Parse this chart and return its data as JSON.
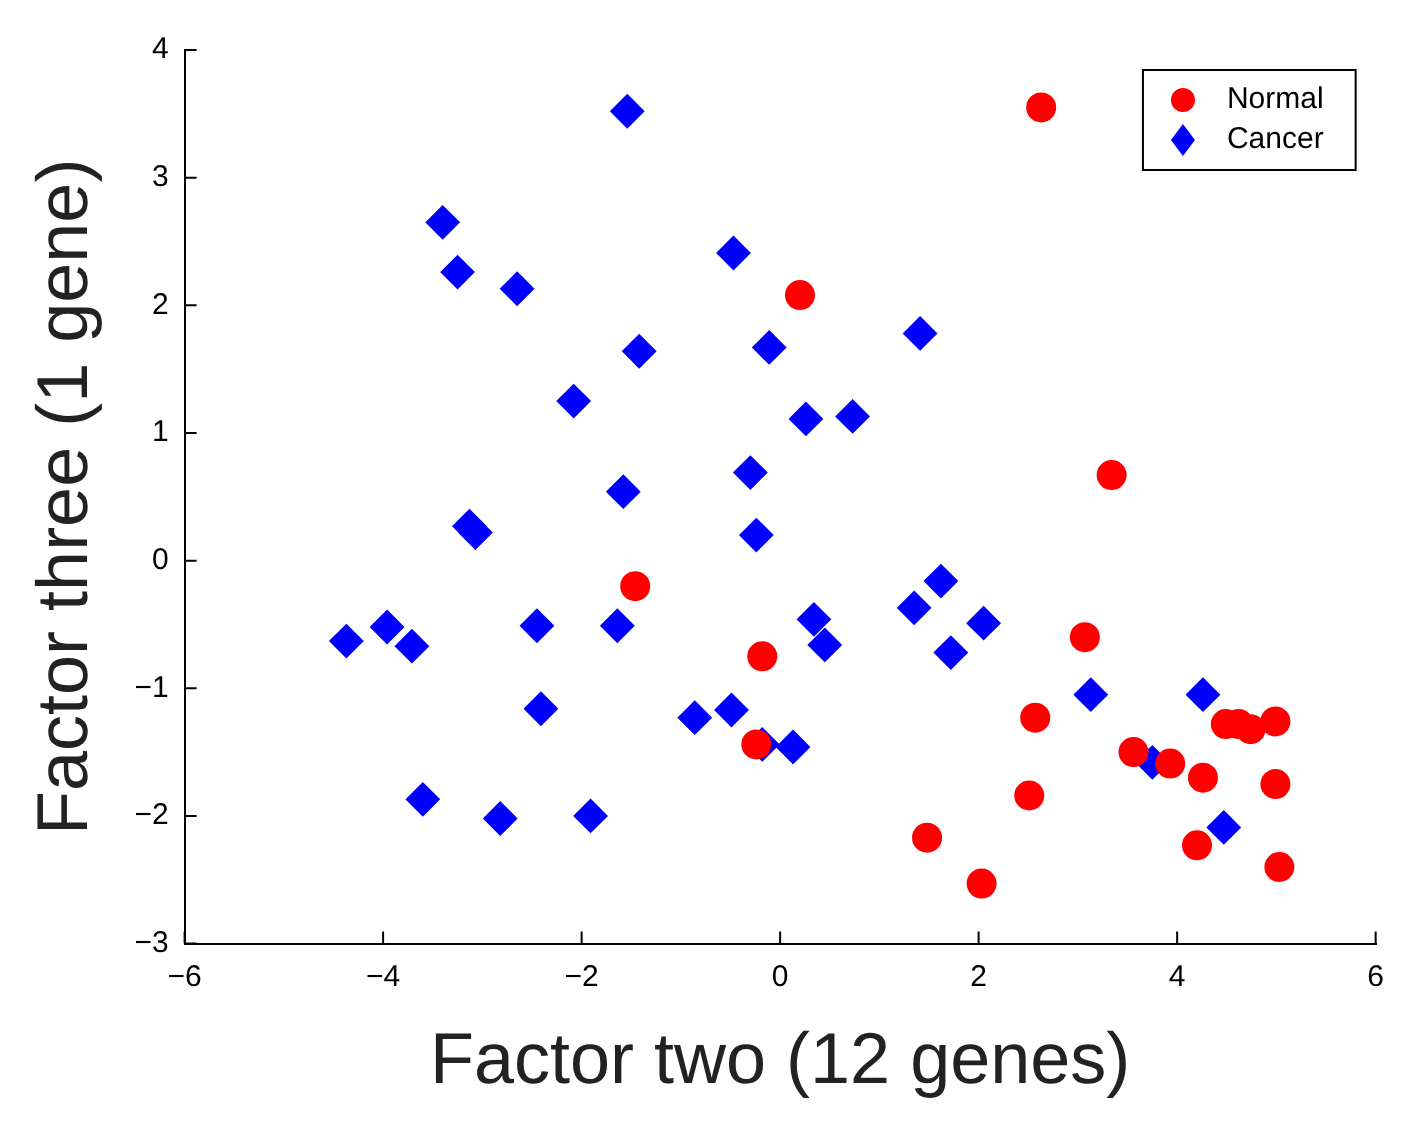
{
  "chart_data": {
    "type": "scatter",
    "xlabel": "Factor two (12 genes)",
    "ylabel": "Factor three (1 gene)",
    "xlim": [
      -6,
      6
    ],
    "ylim": [
      -3,
      4
    ],
    "xticks": [
      {
        "value": -6,
        "label": "−6"
      },
      {
        "value": -4,
        "label": "−4"
      },
      {
        "value": -2,
        "label": "−2"
      },
      0,
      2,
      4,
      6
    ],
    "yticks": [
      {
        "value": -3,
        "label": "−3"
      },
      {
        "value": -2,
        "label": "−2"
      },
      {
        "value": -1,
        "label": "−1"
      },
      0,
      1,
      2,
      3,
      4
    ],
    "grid": false,
    "legend": "top right",
    "series": [
      {
        "name": "Normal",
        "color": "#ff0000",
        "marker": "circle",
        "x": [
          2.63,
          0.2,
          3.34,
          -1.46,
          -0.18,
          3.07,
          -0.24,
          2.57,
          3.56,
          3.93,
          4.26,
          4.49,
          4.62,
          4.74,
          4.99,
          4.99,
          2.51,
          1.48,
          4.2,
          5.03,
          2.03
        ],
        "values": [
          3.55,
          2.08,
          0.67,
          -0.2,
          -0.75,
          -0.6,
          -1.44,
          -1.23,
          -1.5,
          -1.59,
          -1.7,
          -1.28,
          -1.28,
          -1.32,
          -1.26,
          -1.75,
          -1.84,
          -2.17,
          -2.23,
          -2.4,
          -2.53
        ]
      },
      {
        "name": "Cancer",
        "color": "#0000ff",
        "marker": "diamond",
        "x": [
          -1.54,
          -3.4,
          -3.25,
          -2.65,
          -0.47,
          -1.42,
          -2.08,
          -0.11,
          1.41,
          0.26,
          0.73,
          -1.58,
          -0.3,
          -0.24,
          -3.13,
          -3.07,
          -4.37,
          -3.96,
          -3.71,
          -2.45,
          -1.64,
          0.34,
          0.45,
          1.35,
          1.62,
          1.72,
          2.05,
          -2.41,
          -0.86,
          -0.49,
          -0.18,
          0.13,
          3.13,
          4.26,
          3.75,
          4.47,
          -3.6,
          -2.82,
          -1.91
        ],
        "values": [
          3.52,
          2.65,
          2.26,
          2.13,
          2.41,
          1.64,
          1.25,
          1.67,
          1.78,
          1.11,
          1.13,
          0.54,
          0.69,
          0.2,
          0.27,
          0.22,
          -0.63,
          -0.52,
          -0.67,
          -0.51,
          -0.51,
          -0.46,
          -0.66,
          -0.37,
          -0.16,
          -0.72,
          -0.49,
          -1.16,
          -1.23,
          -1.17,
          -1.44,
          -1.46,
          -1.05,
          -1.05,
          -1.58,
          -2.09,
          -1.87,
          -2.02,
          -2.0
        ]
      }
    ]
  }
}
